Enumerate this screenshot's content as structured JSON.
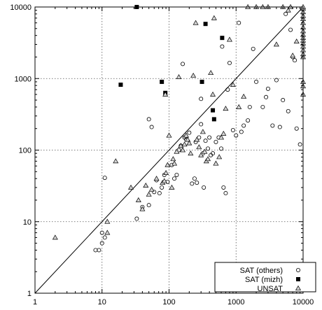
{
  "chart_data": {
    "type": "scatter",
    "x_scale": "log",
    "y_scale": "log",
    "xlim": [
      1,
      10000
    ],
    "ylim": [
      1,
      10000
    ],
    "grid": true,
    "xticks": [
      1,
      10,
      100,
      1000,
      10000
    ],
    "yticks": [
      1,
      10,
      100,
      1000,
      10000
    ],
    "xtick_labels": [
      "1",
      "10",
      "100",
      "1000",
      "10000"
    ],
    "ytick_labels": [
      "1",
      "10",
      "100",
      "1000",
      "10000"
    ],
    "diagonal_line": true,
    "legend_position": "bottom-right",
    "series": [
      {
        "name": "SAT (others)",
        "marker": "circle",
        "points": [
          [
            8,
            4
          ],
          [
            9,
            4
          ],
          [
            10,
            5
          ],
          [
            10,
            7
          ],
          [
            11,
            6
          ],
          [
            11,
            41
          ],
          [
            33,
            11
          ],
          [
            40,
            16
          ],
          [
            50,
            17
          ],
          [
            50,
            270
          ],
          [
            55,
            210
          ],
          [
            60,
            26
          ],
          [
            65,
            38
          ],
          [
            72,
            25
          ],
          [
            78,
            30
          ],
          [
            85,
            45
          ],
          [
            95,
            36
          ],
          [
            110,
            62
          ],
          [
            120,
            40
          ],
          [
            130,
            45
          ],
          [
            140,
            100
          ],
          [
            150,
            115
          ],
          [
            160,
            1600
          ],
          [
            170,
            150
          ],
          [
            180,
            140
          ],
          [
            200,
            175
          ],
          [
            220,
            34
          ],
          [
            240,
            40
          ],
          [
            250,
            130
          ],
          [
            260,
            35
          ],
          [
            280,
            150
          ],
          [
            300,
            520
          ],
          [
            300,
            230
          ],
          [
            320,
            90
          ],
          [
            330,
            30
          ],
          [
            350,
            135
          ],
          [
            380,
            105
          ],
          [
            400,
            150
          ],
          [
            420,
            85
          ],
          [
            450,
            90
          ],
          [
            500,
            130
          ],
          [
            550,
            150
          ],
          [
            600,
            105
          ],
          [
            620,
            2800
          ],
          [
            650,
            30
          ],
          [
            700,
            25
          ],
          [
            750,
            700
          ],
          [
            800,
            1650
          ],
          [
            900,
            190
          ],
          [
            1000,
            160
          ],
          [
            1100,
            6000
          ],
          [
            1200,
            180
          ],
          [
            1300,
            220
          ],
          [
            1500,
            260
          ],
          [
            1600,
            400
          ],
          [
            1800,
            2600
          ],
          [
            2000,
            900
          ],
          [
            2500,
            400
          ],
          [
            2800,
            550
          ],
          [
            3000,
            720
          ],
          [
            3500,
            220
          ],
          [
            4000,
            950
          ],
          [
            4500,
            210
          ],
          [
            5000,
            500
          ],
          [
            5500,
            8000
          ],
          [
            6000,
            350
          ],
          [
            6500,
            4800
          ],
          [
            7000,
            2000
          ],
          [
            7500,
            1800
          ],
          [
            8000,
            200
          ],
          [
            9000,
            120
          ]
        ]
      },
      {
        "name": "SAT (mizh)",
        "marker": "filled-square",
        "points": [
          [
            19,
            820
          ],
          [
            33,
            10000
          ],
          [
            78,
            900
          ],
          [
            88,
            630
          ],
          [
            310,
            900
          ],
          [
            350,
            5800
          ],
          [
            450,
            360
          ],
          [
            470,
            270
          ],
          [
            620,
            3700
          ]
        ]
      },
      {
        "name": "UNSAT",
        "marker": "triangle",
        "points": [
          [
            2,
            6
          ],
          [
            12,
            10
          ],
          [
            12,
            7
          ],
          [
            16,
            70
          ],
          [
            27,
            30
          ],
          [
            35,
            20
          ],
          [
            40,
            15
          ],
          [
            45,
            32
          ],
          [
            50,
            24
          ],
          [
            55,
            28
          ],
          [
            65,
            40
          ],
          [
            80,
            35
          ],
          [
            85,
            37
          ],
          [
            88,
            600
          ],
          [
            90,
            48
          ],
          [
            95,
            62
          ],
          [
            100,
            160
          ],
          [
            110,
            30
          ],
          [
            115,
            75
          ],
          [
            120,
            65
          ],
          [
            130,
            95
          ],
          [
            140,
            1050
          ],
          [
            150,
            115
          ],
          [
            160,
            100
          ],
          [
            170,
            120
          ],
          [
            180,
            160
          ],
          [
            190,
            140
          ],
          [
            200,
            125
          ],
          [
            210,
            90
          ],
          [
            230,
            1100
          ],
          [
            250,
            6000
          ],
          [
            260,
            140
          ],
          [
            280,
            110
          ],
          [
            300,
            85
          ],
          [
            320,
            180
          ],
          [
            340,
            95
          ],
          [
            360,
            70
          ],
          [
            380,
            75
          ],
          [
            420,
            1200
          ],
          [
            450,
            600
          ],
          [
            470,
            7000
          ],
          [
            500,
            65
          ],
          [
            560,
            80
          ],
          [
            600,
            150
          ],
          [
            650,
            170
          ],
          [
            700,
            380
          ],
          [
            800,
            3500
          ],
          [
            900,
            820
          ],
          [
            1100,
            400
          ],
          [
            1300,
            560
          ],
          [
            1500,
            10000
          ],
          [
            2000,
            10000
          ],
          [
            2500,
            10000
          ],
          [
            3000,
            10000
          ],
          [
            4000,
            3000
          ],
          [
            5000,
            10000
          ],
          [
            6000,
            9000
          ],
          [
            6500,
            10000
          ],
          [
            7000,
            2100
          ],
          [
            8000,
            3300
          ],
          [
            10000,
            9500
          ],
          [
            10000,
            8500
          ],
          [
            10000,
            7500
          ],
          [
            10000,
            6800
          ],
          [
            10000,
            6000
          ],
          [
            10000,
            5200
          ],
          [
            10000,
            4600
          ],
          [
            10000,
            4100
          ],
          [
            10000,
            3700
          ],
          [
            10000,
            3400
          ],
          [
            10000,
            3100
          ],
          [
            10000,
            2800
          ],
          [
            10000,
            2500
          ],
          [
            10000,
            2200
          ],
          [
            10000,
            2000
          ],
          [
            10000,
            900
          ],
          [
            10000,
            780
          ],
          [
            10000,
            600
          ],
          [
            10000,
            10000
          ]
        ]
      }
    ]
  }
}
